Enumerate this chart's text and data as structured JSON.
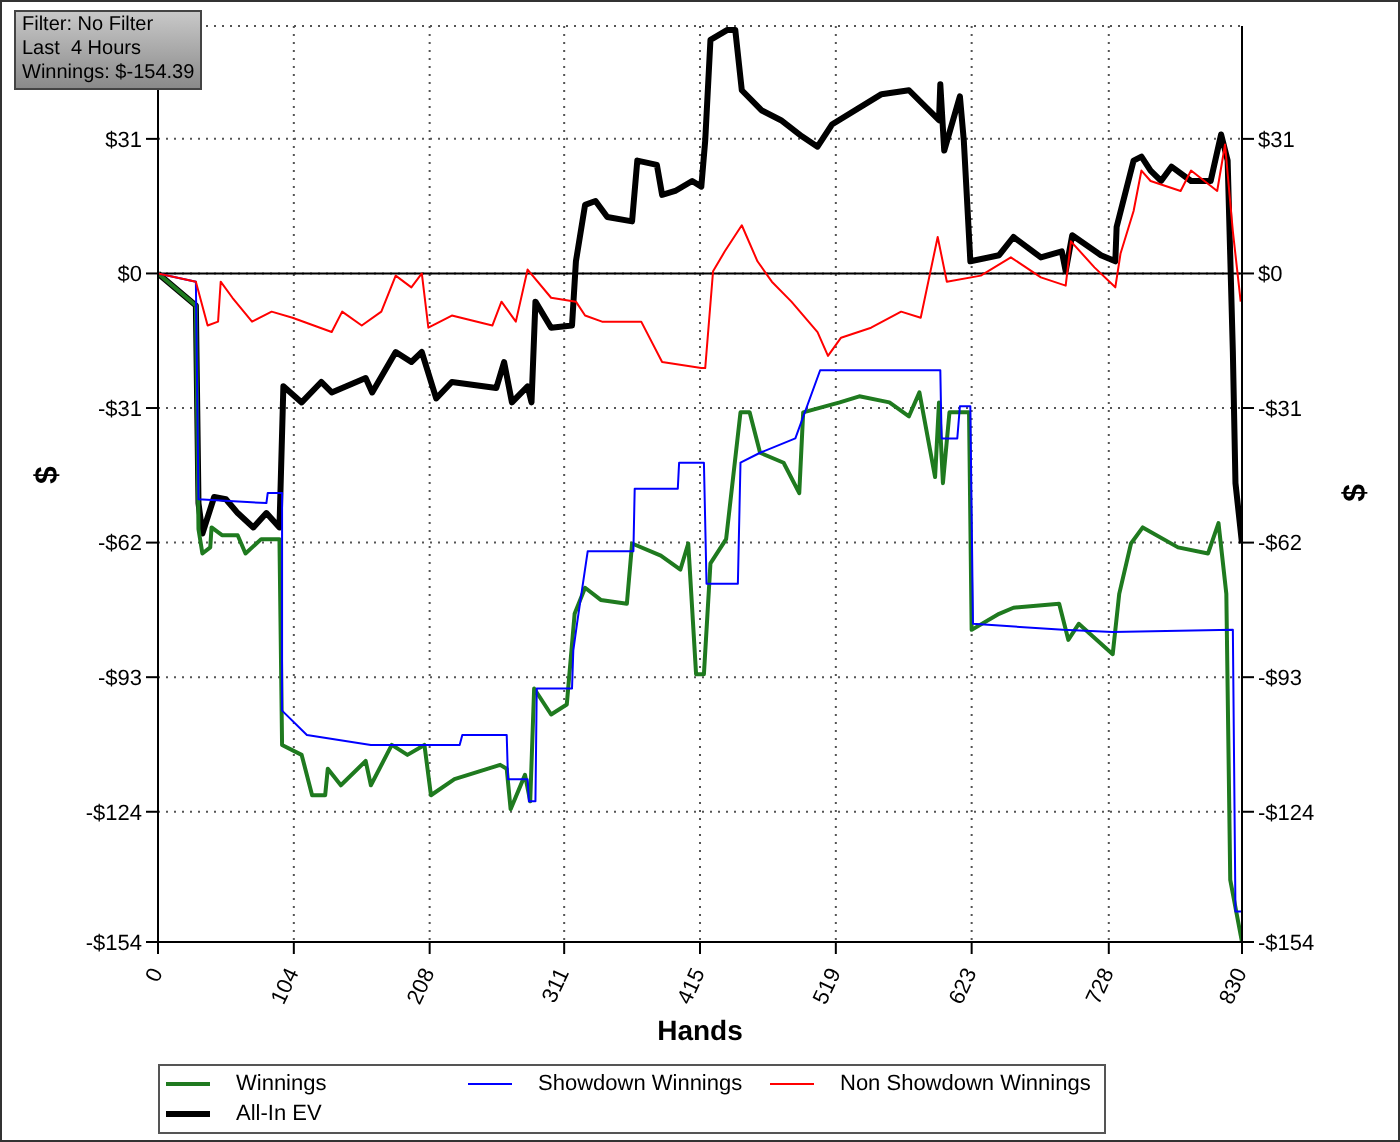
{
  "chart_data": {
    "type": "line",
    "xlabel": "Hands",
    "ylabel": "$",
    "y2label": "$",
    "annotations": [
      "Filter: No Filter",
      "Last  4 Hours",
      "Winnings: $-154.39"
    ],
    "xlim": [
      0,
      830
    ],
    "xticks": [
      0,
      104,
      208,
      311,
      415,
      519,
      623,
      728,
      830
    ],
    "ylim": [
      -154,
      57
    ],
    "yticks": [
      {
        "value": -154,
        "label": "-$154"
      },
      {
        "value": -124,
        "label": "-$124"
      },
      {
        "value": -93,
        "label": "-$93"
      },
      {
        "value": -62,
        "label": "-$62"
      },
      {
        "value": -31,
        "label": "-$31"
      },
      {
        "value": 0,
        "label": "$0"
      },
      {
        "value": 31,
        "label": "$31"
      }
    ],
    "y2lim": [
      -154,
      57
    ],
    "y2ticks": [
      {
        "value": -154,
        "label": "-$154"
      },
      {
        "value": -124,
        "label": "-$124"
      },
      {
        "value": -93,
        "label": "-$93"
      },
      {
        "value": -62,
        "label": "-$62"
      },
      {
        "value": -31,
        "label": "-$31"
      },
      {
        "value": 0,
        "label": "$0"
      },
      {
        "value": 31,
        "label": "$31"
      }
    ],
    "grid": true,
    "legend": "bottom",
    "marker": "none",
    "line_style": "solid",
    "ref_lines": [
      {
        "axis": "y",
        "value": 0,
        "color": "#000000"
      }
    ],
    "series": [
      {
        "name": "Winnings",
        "color": "#1f7a1f",
        "x": [
          0,
          29,
          31,
          34,
          40,
          41,
          49,
          61,
          67,
          79,
          93,
          95,
          110,
          118,
          128,
          130,
          140,
          159,
          163,
          179,
          191,
          204,
          209,
          227,
          262,
          267,
          270,
          281,
          285,
          288,
          301,
          313,
          319,
          327,
          339,
          359,
          363,
          385,
          400,
          406,
          412,
          418,
          423,
          435,
          446,
          453,
          461,
          479,
          491,
          494,
          522,
          537,
          560,
          575,
          583,
          595,
          598,
          601,
          606,
          621,
          623,
          644,
          655,
          690,
          697,
          705,
          731,
          736,
          745,
          754,
          781,
          804,
          812,
          818,
          821,
          830
        ],
        "values": [
          0,
          -7.4,
          -58.9,
          -64.5,
          -63.1,
          -58.5,
          -60.3,
          -60.3,
          -64.5,
          -61.2,
          -61.2,
          -108.6,
          -110.9,
          -120.2,
          -120.2,
          -114.1,
          -117.9,
          -112.3,
          -117.9,
          -108.6,
          -110.9,
          -108.6,
          -120.2,
          -116.5,
          -113.2,
          -114.1,
          -123.4,
          -115.5,
          -121.6,
          -95.6,
          -101.6,
          -99.3,
          -78.4,
          -72.4,
          -75.2,
          -76.1,
          -62.2,
          -65,
          -68.2,
          -62.2,
          -92.3,
          -92.3,
          -66.8,
          -61.2,
          -32,
          -32,
          -41.3,
          -43.6,
          -50.6,
          -32,
          -29.7,
          -28.3,
          -29.7,
          -32.9,
          -27.4,
          -46.9,
          -29.7,
          -48.3,
          -32,
          -32,
          -82.1,
          -78.4,
          -77,
          -76.1,
          -84.4,
          -80.7,
          -87.7,
          -73.8,
          -62.2,
          -58.5,
          -63.1,
          -64.5,
          -57.5,
          -73.8,
          -139.7,
          -154
        ]
      },
      {
        "name": "Showdown Winnings",
        "color": "#0000ff",
        "x": [
          0,
          29,
          31,
          83,
          84,
          95,
          95,
          114,
          163,
          231,
          233,
          267,
          268,
          283,
          284,
          289,
          290,
          317,
          318,
          321,
          329,
          364,
          365,
          398,
          399,
          418,
          420,
          444,
          446,
          461,
          488,
          507,
          599,
          600,
          612,
          614,
          622,
          624,
          693,
          731,
          823,
          825,
          830
        ],
        "values": [
          0,
          -1.9,
          -52,
          -52.9,
          -50.6,
          -50.6,
          -100.7,
          -106.3,
          -108.6,
          -108.6,
          -106.3,
          -106.3,
          -116.5,
          -116.5,
          -121.6,
          -121.6,
          -95.6,
          -95.6,
          -86.8,
          -80.3,
          -64,
          -64,
          -49.6,
          -49.6,
          -43.6,
          -43.6,
          -71.5,
          -71.5,
          -43.6,
          -41.3,
          -38,
          -22.3,
          -22.3,
          -38,
          -38,
          -30.6,
          -30.6,
          -80.7,
          -82.1,
          -82.6,
          -82.1,
          -147,
          -147
        ]
      },
      {
        "name": "Non Showdown Winnings",
        "color": "#ff0000",
        "x": [
          0,
          29,
          38,
          46,
          48,
          57,
          72,
          87,
          103,
          133,
          141,
          156,
          171,
          182,
          194,
          202,
          207,
          225,
          256,
          263,
          274,
          283,
          301,
          320,
          327,
          340,
          370,
          386,
          416,
          419,
          425,
          434,
          447,
          459,
          470,
          485,
          505,
          513,
          523,
          546,
          569,
          584,
          597,
          604,
          630,
          653,
          676,
          695,
          699,
          717,
          733,
          737,
          747,
          753,
          760,
          783,
          791,
          811,
          817,
          823,
          829
        ],
        "values": [
          0,
          -1.9,
          -12,
          -11.1,
          -1.9,
          -5.6,
          -11.1,
          -8.8,
          -10.2,
          -13.5,
          -8.8,
          -12,
          -8.8,
          -0.5,
          -3.2,
          0,
          -12.5,
          -9.7,
          -12,
          -6.5,
          -11.1,
          0.9,
          -5.6,
          -6.5,
          -9.7,
          -11.1,
          -11.1,
          -20.4,
          -21.8,
          -21.8,
          0.5,
          5.1,
          11.1,
          2.8,
          -1.9,
          -6.5,
          -13.5,
          -19,
          -14.8,
          -12.5,
          -8.8,
          -10.2,
          8.4,
          -1.9,
          -0.5,
          3.7,
          -0.9,
          -2.8,
          7.4,
          1.4,
          -3.2,
          4.6,
          14.4,
          23.7,
          21.3,
          19,
          23.7,
          19,
          29.7,
          9.7,
          -6.5
        ]
      },
      {
        "name": "All-In EV",
        "color": "#000000",
        "x": [
          0,
          29,
          31,
          34,
          43,
          52,
          61,
          73,
          83,
          93,
          96,
          110,
          125,
          133,
          159,
          164,
          182,
          194,
          202,
          213,
          225,
          259,
          265,
          271,
          283,
          286,
          289,
          301,
          317,
          320,
          327,
          335,
          344,
          363,
          367,
          382,
          386,
          396,
          409,
          416,
          419,
          423,
          436,
          442,
          447,
          462,
          477,
          493,
          505,
          516,
          554,
          575,
          598,
          599,
          602,
          614,
          617,
          622,
          644,
          655,
          676,
          692,
          695,
          700,
          722,
          733,
          734,
          747,
          753,
          760,
          768,
          776,
          791,
          806,
          814,
          819,
          823,
          825,
          830
        ],
        "values": [
          0,
          -7.4,
          -52.9,
          -59.9,
          -51.5,
          -52,
          -55.2,
          -58.5,
          -55.2,
          -58.5,
          -26,
          -29.7,
          -25,
          -27.4,
          -24.1,
          -27.4,
          -18.1,
          -20.4,
          -18.1,
          -28.8,
          -25,
          -26.4,
          -20.4,
          -29.7,
          -26,
          -29.7,
          -6.5,
          -12.5,
          -12,
          2.8,
          15.8,
          16.7,
          13,
          12,
          26,
          25,
          18.1,
          19,
          21.3,
          20,
          30.6,
          53.8,
          56.1,
          56.1,
          42.2,
          37.6,
          35.3,
          31.6,
          29.2,
          34.3,
          41.3,
          42.2,
          35.3,
          43.6,
          28.3,
          40.8,
          30.6,
          2.8,
          4.2,
          8.4,
          3.7,
          5.1,
          0.5,
          8.8,
          4.2,
          2.8,
          10.7,
          26,
          26.9,
          23.7,
          21.3,
          24.6,
          21.3,
          21.3,
          32,
          26,
          -18.1,
          -48.3,
          -62.2
        ]
      }
    ]
  }
}
